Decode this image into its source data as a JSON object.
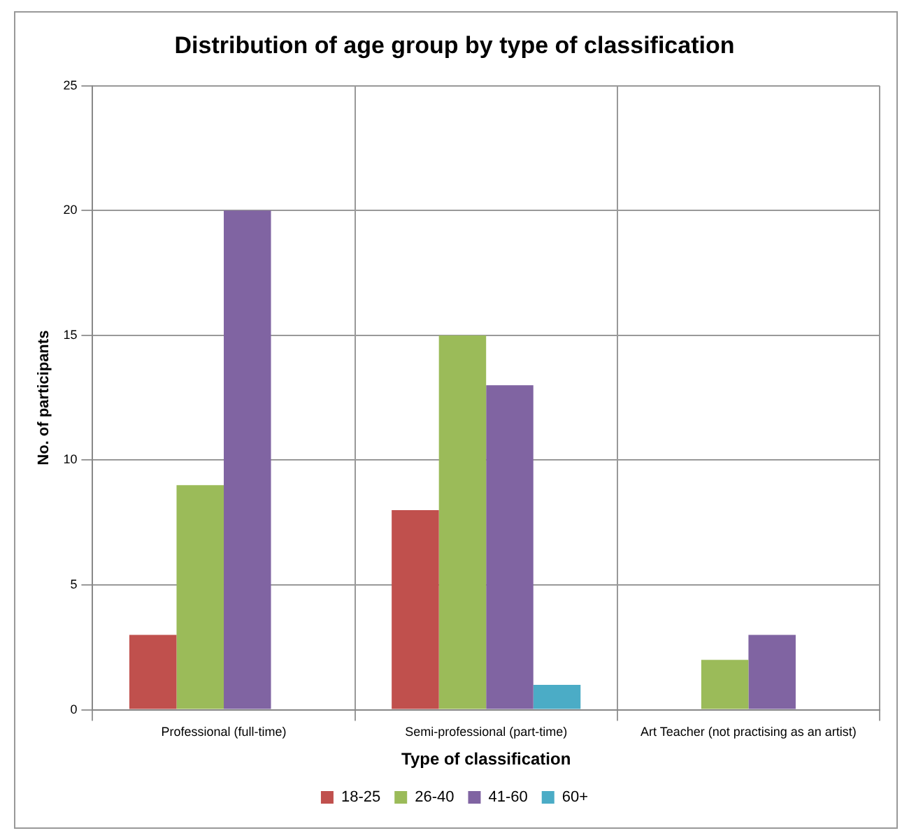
{
  "chart_data": {
    "type": "bar",
    "title": "Distribution of age group by type of classification",
    "xlabel": "Type of classification",
    "ylabel": "No. of participants",
    "categories": [
      "Professional (full-time)",
      "Semi-professional (part-time)",
      "Art Teacher (not practising as an artist)"
    ],
    "series": [
      {
        "name": "18-25",
        "color": "#c0504d",
        "values": [
          3,
          8,
          0
        ]
      },
      {
        "name": "26-40",
        "color": "#9bbb59",
        "values": [
          9,
          15,
          2
        ]
      },
      {
        "name": "41-60",
        "color": "#8064a2",
        "values": [
          20,
          13,
          3
        ]
      },
      {
        "name": "60+",
        "color": "#4bacc6",
        "values": [
          0,
          1,
          0
        ]
      }
    ],
    "ylim": [
      0,
      25
    ],
    "yticks": [
      0,
      5,
      10,
      15,
      20,
      25
    ],
    "grid": true,
    "legend": "bottom"
  }
}
